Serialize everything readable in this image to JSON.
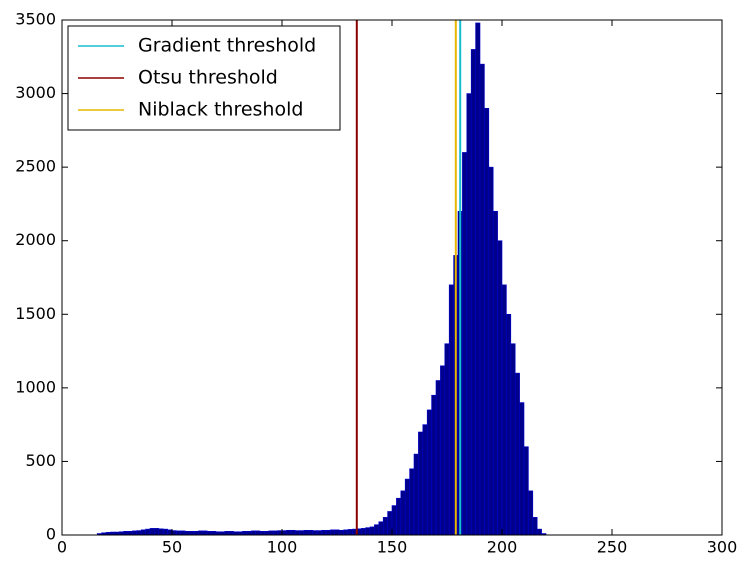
{
  "chart_data": {
    "type": "histogram",
    "bins": [
      16,
      18,
      20,
      22,
      24,
      26,
      28,
      30,
      32,
      34,
      36,
      38,
      40,
      42,
      44,
      46,
      48,
      50,
      52,
      54,
      56,
      58,
      60,
      62,
      64,
      66,
      68,
      70,
      72,
      74,
      76,
      78,
      80,
      82,
      84,
      86,
      88,
      90,
      92,
      94,
      96,
      98,
      100,
      102,
      104,
      106,
      108,
      110,
      112,
      114,
      116,
      118,
      120,
      122,
      124,
      126,
      128,
      130,
      132,
      134,
      136,
      138,
      140,
      142,
      144,
      146,
      148,
      150,
      152,
      154,
      156,
      158,
      160,
      162,
      164,
      166,
      168,
      170,
      172,
      174,
      176,
      178,
      180,
      182,
      184,
      186,
      188,
      190,
      192,
      194,
      196,
      198,
      200,
      202,
      204,
      206,
      208,
      210,
      212,
      214,
      216,
      218,
      220
    ],
    "values": [
      10,
      15,
      18,
      20,
      20,
      22,
      25,
      25,
      28,
      30,
      35,
      40,
      45,
      45,
      42,
      40,
      35,
      30,
      28,
      28,
      25,
      25,
      25,
      28,
      28,
      25,
      25,
      22,
      22,
      25,
      25,
      22,
      22,
      25,
      25,
      28,
      28,
      25,
      25,
      28,
      28,
      30,
      30,
      32,
      32,
      30,
      30,
      32,
      32,
      30,
      30,
      32,
      32,
      35,
      35,
      32,
      35,
      38,
      40,
      42,
      45,
      50,
      55,
      70,
      90,
      120,
      160,
      200,
      250,
      300,
      380,
      450,
      550,
      700,
      750,
      850,
      950,
      1050,
      1150,
      1300,
      1700,
      1900,
      2200,
      2600,
      3000,
      3300,
      3480,
      3200,
      2900,
      2500,
      2200,
      2000,
      1700,
      1500,
      1300,
      1100,
      900,
      600,
      300,
      120,
      40,
      10
    ],
    "color": "#00008b",
    "lines": [
      {
        "name": "Gradient threshold",
        "color": "#17becf",
        "x": 181
      },
      {
        "name": "Otsu threshold",
        "color": "#8b0000",
        "x": 134
      },
      {
        "name": "Niblack threshold",
        "color": "#e6b800",
        "x": 179
      }
    ],
    "xlim": [
      0,
      300
    ],
    "xticks": [
      0,
      50,
      100,
      150,
      200,
      250,
      300
    ],
    "ylim": [
      0,
      3500
    ],
    "yticks": [
      0,
      500,
      1000,
      1500,
      2000,
      2500,
      3000,
      3500
    ],
    "legend": "upper left"
  }
}
